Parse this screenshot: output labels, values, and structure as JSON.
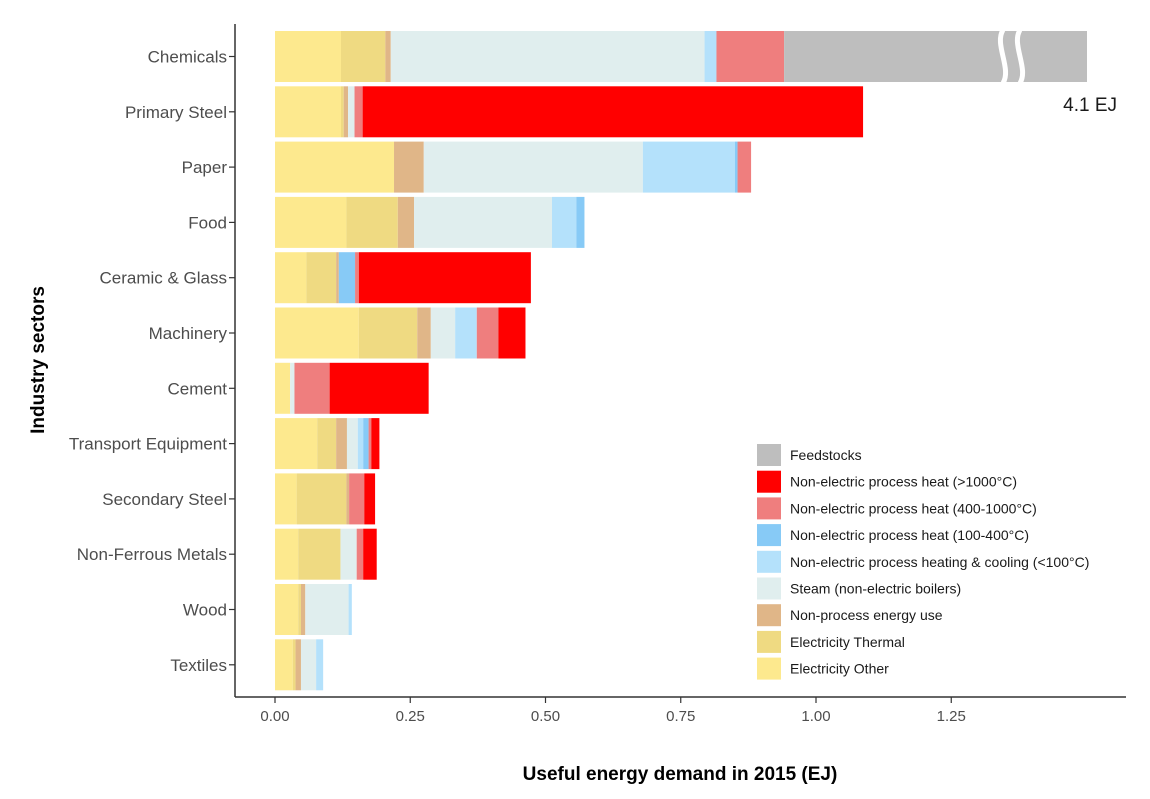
{
  "chart_data": {
    "type": "bar",
    "orientation": "horizontal",
    "stacked": true,
    "title": "",
    "xlabel": "Useful energy demand in 2015 (EJ)",
    "ylabel": "Industry sectors",
    "xlim": [
      -0.075,
      1.5
    ],
    "x_ticks": [
      0,
      0.25,
      0.5,
      0.75,
      1.0,
      1.25
    ],
    "x_tick_labels": [
      "0.00",
      "0.25",
      "0.50",
      "0.75",
      "1.00",
      "1.25"
    ],
    "grid": false,
    "legend_position": "bottom-right",
    "categories": [
      "Chemicals",
      "Primary Steel",
      "Paper",
      "Food",
      "Ceramic & Glass",
      "Machinery",
      "Cement",
      "Transport Equipment",
      "Secondary Steel",
      "Non-Ferrous Metals",
      "Wood",
      "Textiles"
    ],
    "series": [
      {
        "name": "Electricity Other",
        "color": "#FDE98E",
        "values": [
          0.122,
          0.122,
          0.22,
          0.132,
          0.058,
          0.155,
          0.028,
          0.078,
          0.04,
          0.043,
          0.043,
          0.033
        ]
      },
      {
        "name": "Electricity Thermal",
        "color": "#EFDA82",
        "values": [
          0.082,
          0.005,
          0.0,
          0.095,
          0.055,
          0.108,
          0.0,
          0.035,
          0.092,
          0.078,
          0.005,
          0.005
        ]
      },
      {
        "name": "Non-process energy use",
        "color": "#E0B688",
        "values": [
          0.01,
          0.008,
          0.055,
          0.03,
          0.005,
          0.025,
          0.0,
          0.02,
          0.005,
          0.0,
          0.008,
          0.01
        ]
      },
      {
        "name": "Steam (non-electric boilers)",
        "color": "#E0EEEE",
        "values": [
          0.58,
          0.012,
          0.405,
          0.255,
          0.0,
          0.045,
          0.008,
          0.02,
          0.0,
          0.03,
          0.08,
          0.028
        ]
      },
      {
        "name": "Non-electric process heating & cooling (<100°C)",
        "color": "#B4E1FB",
        "values": [
          0.022,
          0.0,
          0.17,
          0.045,
          0.0,
          0.04,
          0.0,
          0.01,
          0.0,
          0.0,
          0.006,
          0.013
        ]
      },
      {
        "name": "Non-electric process heat (100-400°C)",
        "color": "#87CAF6",
        "values": [
          0.0,
          0.0,
          0.005,
          0.015,
          0.03,
          0.0,
          0.0,
          0.01,
          0.0,
          0.0,
          0.0,
          0.0
        ]
      },
      {
        "name": "Non-electric process heat (400-1000°C)",
        "color": "#EF7E7E",
        "values": [
          0.125,
          0.015,
          0.025,
          0.0,
          0.007,
          0.04,
          0.065,
          0.005,
          0.028,
          0.012,
          0.0,
          0.0
        ]
      },
      {
        "name": "Non-electric process heat (>1000°C)",
        "color": "#FF0000",
        "values": [
          0.0,
          0.925,
          0.0,
          0.0,
          0.318,
          0.05,
          0.183,
          0.015,
          0.02,
          0.025,
          0.0,
          0.0
        ]
      },
      {
        "name": "Feedstocks",
        "color": "#BEBEBE",
        "values": [
          4.1,
          0.0,
          0.0,
          0.0,
          0.0,
          0.0,
          0.0,
          0.0,
          0.0,
          0.0,
          0.0,
          0.0
        ]
      }
    ],
    "legend_order": [
      "Feedstocks",
      "Non-electric process heat (>1000°C)",
      "Non-electric process heat (400-1000°C)",
      "Non-electric process heat (100-400°C)",
      "Non-electric process heating & cooling (<100°C)",
      "Steam (non-electric boilers)",
      "Non-process energy use",
      "Electricity Thermal",
      "Electricity Other"
    ],
    "axis_break": {
      "category": "Chemicals",
      "series": "Feedstocks",
      "label": "4.1 EJ"
    },
    "annotations": [
      "4.1 EJ"
    ]
  }
}
